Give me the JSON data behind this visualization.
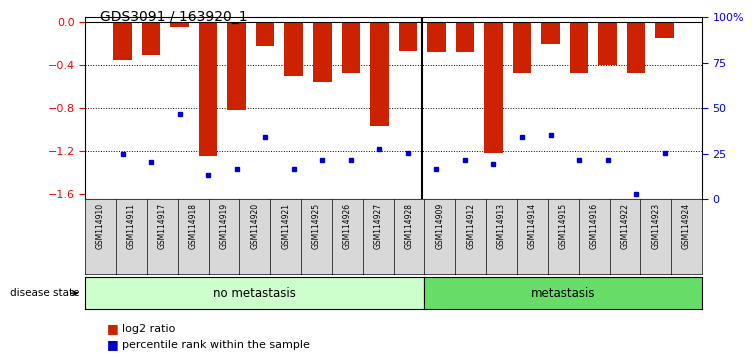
{
  "title": "GDS3091 / 163920_1",
  "samples": [
    "GSM114910",
    "GSM114911",
    "GSM114917",
    "GSM114918",
    "GSM114919",
    "GSM114920",
    "GSM114921",
    "GSM114925",
    "GSM114926",
    "GSM114927",
    "GSM114928",
    "GSM114909",
    "GSM114912",
    "GSM114913",
    "GSM114914",
    "GSM114915",
    "GSM114916",
    "GSM114922",
    "GSM114923",
    "GSM114924"
  ],
  "log2_values": [
    -0.35,
    -0.3,
    -0.04,
    -1.25,
    -0.82,
    -0.22,
    -0.5,
    -0.56,
    -0.47,
    -0.97,
    -0.27,
    -0.28,
    -0.28,
    -1.22,
    -0.47,
    -0.2,
    -0.47,
    -0.4,
    -0.47,
    -0.15
  ],
  "percentile_values": [
    -1.23,
    -1.3,
    -0.85,
    -1.42,
    -1.37,
    -1.07,
    -1.37,
    -1.28,
    -1.28,
    -1.18,
    -1.22,
    -1.37,
    -1.28,
    -1.32,
    -1.07,
    -1.05,
    -1.28,
    -1.28,
    -1.6,
    -1.22
  ],
  "no_metastasis_count": 11,
  "metastasis_count": 9,
  "bar_color": "#cc2200",
  "marker_color": "#0000cc",
  "ylim_left": [
    -1.65,
    0.05
  ],
  "ylim_right": [
    0,
    100
  ],
  "yticks_left": [
    0,
    -0.4,
    -0.8,
    -1.2,
    -1.6
  ],
  "yticks_right": [
    0,
    25,
    50,
    75,
    100
  ],
  "ytick_labels_right": [
    "0",
    "25",
    "50",
    "75",
    "100%"
  ],
  "no_metastasis_color": "#ccffcc",
  "metastasis_color": "#66dd66",
  "xtick_bg_color": "#d8d8d8",
  "legend_log2": "log2 ratio",
  "legend_percentile": "percentile rank within the sample",
  "disease_state_label": "disease state",
  "no_metastasis_label": "no metastasis",
  "metastasis_label": "metastasis"
}
